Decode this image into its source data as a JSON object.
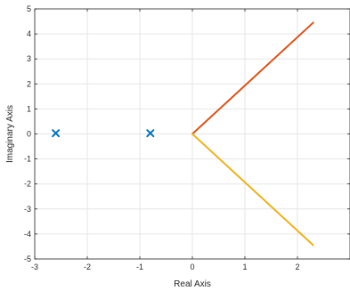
{
  "chart_data": {
    "type": "line",
    "title": "",
    "xlabel": "Real Axis",
    "ylabel": "Imaginary Axis",
    "xlim": [
      -3,
      3
    ],
    "ylim": [
      -5,
      5
    ],
    "grid": true,
    "x_ticks": [
      -3,
      -2,
      -1,
      0,
      1,
      2
    ],
    "y_ticks": [
      -5,
      -4,
      -3,
      -2,
      -1,
      0,
      1,
      2,
      3,
      4,
      5
    ],
    "series": [
      {
        "type": "line",
        "color": "#D95319",
        "points": [
          [
            0,
            0
          ],
          [
            2.3,
            4.45
          ]
        ]
      },
      {
        "type": "line",
        "color": "#EDB120",
        "points": [
          [
            0,
            0
          ],
          [
            2.3,
            -4.45
          ]
        ]
      },
      {
        "type": "scatter",
        "marker": "x",
        "color": "#0072BD",
        "points": [
          [
            -2.6,
            0.03
          ],
          [
            -0.8,
            0.03
          ]
        ]
      }
    ]
  }
}
